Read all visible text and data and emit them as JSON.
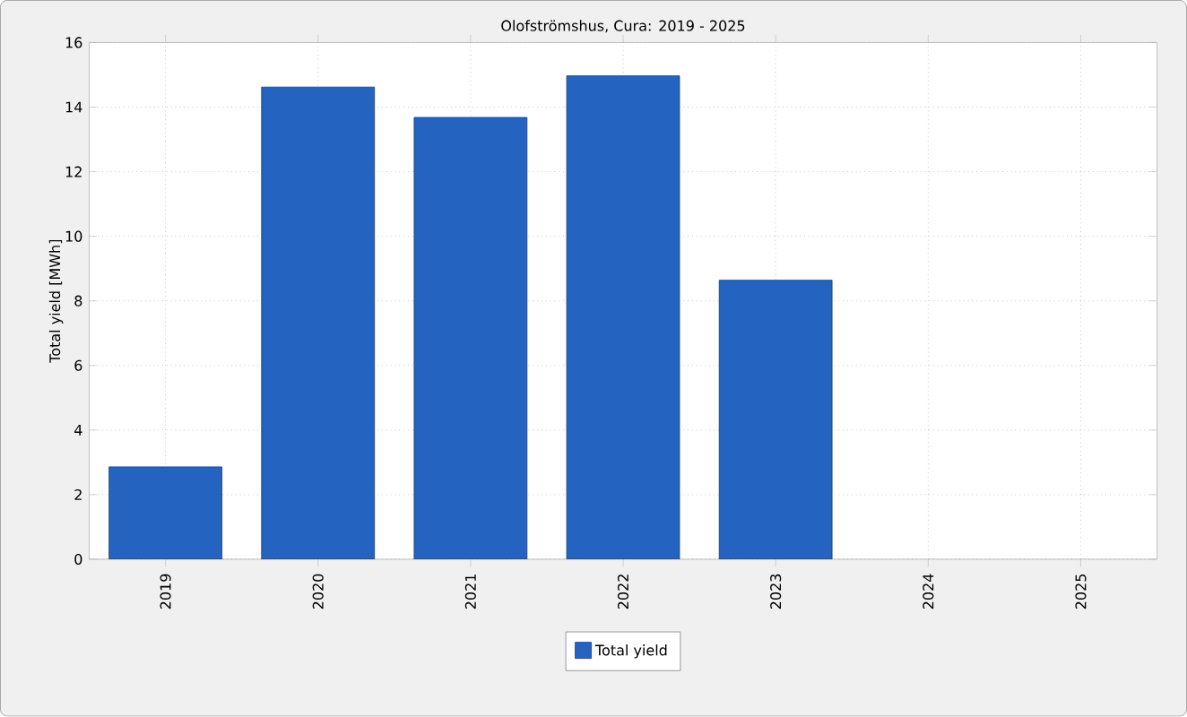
{
  "chart_data": {
    "type": "bar",
    "title": "Olofströmshus, Cura: 2019 - 2025",
    "ylabel": "Total yield [MWh]",
    "categories": [
      "2019",
      "2020",
      "2021",
      "2022",
      "2023",
      "2024",
      "2025"
    ],
    "series": [
      {
        "name": "Total yield",
        "color": "#2563c0",
        "values": [
          2.86,
          14.62,
          13.68,
          14.97,
          8.64,
          null,
          null
        ]
      }
    ],
    "ylim": [
      0,
      16
    ],
    "yticks": [
      0,
      2,
      4,
      6,
      8,
      10,
      12,
      14,
      16
    ],
    "grid": true,
    "legend": "bottom"
  }
}
